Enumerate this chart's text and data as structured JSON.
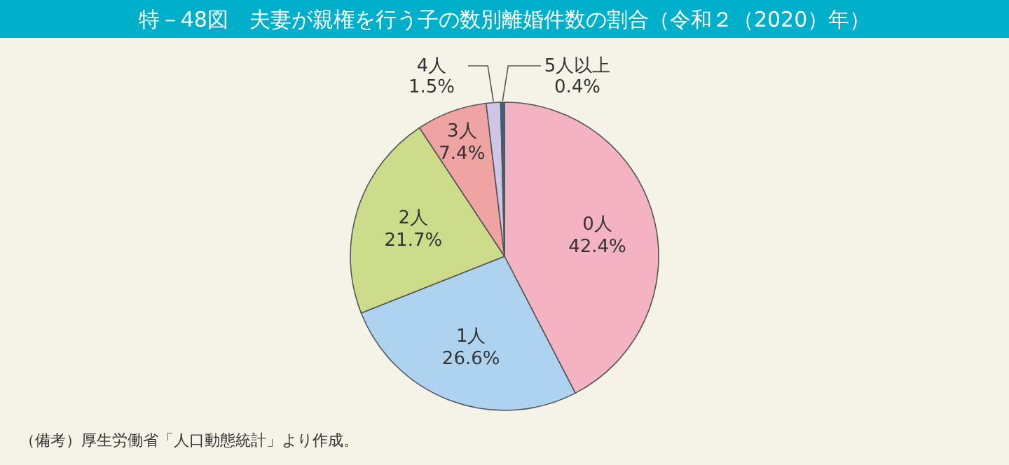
{
  "chart_data": {
    "type": "pie",
    "title": "特－48図　夫妻が親権を行う子の数別離婚件数の割合（令和２（2020）年）",
    "categories": [
      "0人",
      "1人",
      "2人",
      "3人",
      "4人",
      "5人以上"
    ],
    "values": [
      42.4,
      26.6,
      21.7,
      7.4,
      1.5,
      0.4
    ],
    "colors": [
      "#f4b3c2",
      "#aed3f0",
      "#cddc8a",
      "#f0a3a3",
      "#cfc6e6",
      "#3d5f8f"
    ],
    "value_labels": [
      "42.4%",
      "26.6%",
      "21.7%",
      "7.4%",
      "1.5%",
      "0.4%"
    ],
    "annotations": [
      "（備考）厚生労働省「人口動態統計」より作成。"
    ]
  }
}
